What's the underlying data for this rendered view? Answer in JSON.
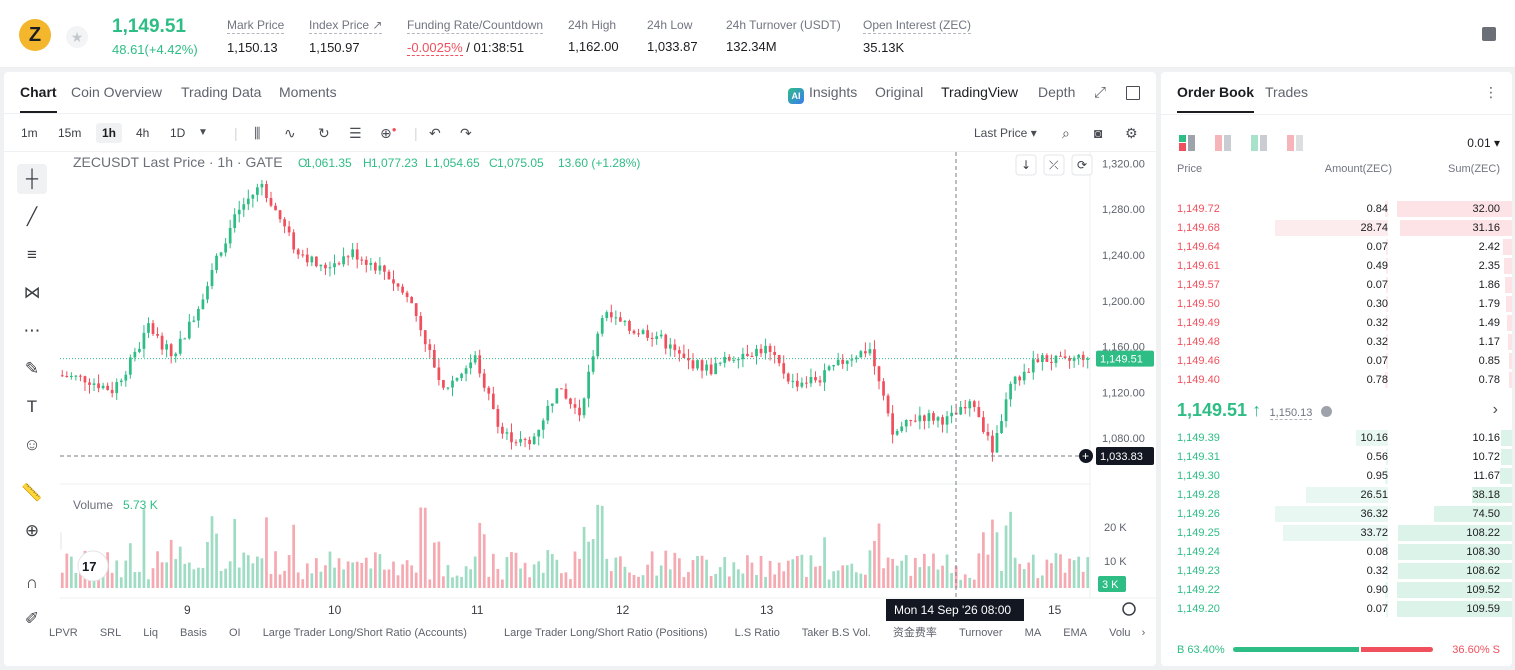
{
  "header": {
    "coin_symbol": "Z",
    "last_price": "1,149.51",
    "change": "48.61(+4.42%)",
    "stats": [
      {
        "label": "Mark Price",
        "value": "1,150.13"
      },
      {
        "label": "Index Price ↗",
        "value": "1,150.97"
      },
      {
        "label": "Funding Rate/Countdown",
        "value_neg": "-0.0025%",
        "value": " / 01:38:51"
      },
      {
        "label": "24h High",
        "value": "1,162.00"
      },
      {
        "label": "24h Low",
        "value": "1,033.87"
      },
      {
        "label": "24h Turnover (USDT)",
        "value": "132.34M"
      },
      {
        "label": "Open Interest (ZEC)",
        "value": "35.13K"
      }
    ]
  },
  "chart_tabs": [
    "Chart",
    "Coin Overview",
    "Trading Data",
    "Moments"
  ],
  "view_tabs": {
    "insights": "Insights",
    "original": "Original",
    "tradingview": "TradingView",
    "depth": "Depth",
    "ai_badge": "AI"
  },
  "timeframes": [
    "1m",
    "15m",
    "1h",
    "4h",
    "1D"
  ],
  "price_type": "Last Price ▾",
  "legend": {
    "symbol": "ZECUSDT Last Price · 1h · GATE",
    "o_label": "O",
    "o": "1,061.35",
    "h_label": "H",
    "h": "1,077.23",
    "l_label": "L",
    "l": "1,054.65",
    "c_label": "C",
    "c": "1,075.05",
    "chg": "13.60 (+1.28%)"
  },
  "volume_label": "Volume",
  "volume_value": "5.73 K",
  "crosshair_date": "Mon 14 Sep '26   08:00",
  "crosshair_price": "1,033.83",
  "current_price_tag": "1,149.51",
  "bottom_tabs": [
    "LPVR",
    "SRL",
    "Liq",
    "Basis",
    "OI",
    "Large Trader Long/Short Ratio (Accounts)",
    "Large Trader Long/Short Ratio (Positions)",
    "L.S Ratio",
    "Taker B.S Vol.",
    "资金费率",
    "Turnover",
    "MA",
    "EMA",
    "Volu"
  ],
  "chart_data": {
    "type": "candlestick",
    "y_ticks": [
      "1,320.00",
      "1,280.00",
      "1,240.00",
      "1,200.00",
      "1,160.00",
      "1,120.00",
      "1,080.00"
    ],
    "ylim": [
      1040,
      1330
    ],
    "x_ticks": [
      "9",
      "10",
      "11",
      "12",
      "13",
      "15"
    ],
    "volume_ticks": [
      "20 K",
      "10 K",
      "3 K"
    ],
    "anchors": [
      [
        0,
        1135
      ],
      [
        6,
        1132
      ],
      [
        12,
        1122
      ],
      [
        17,
        1152
      ],
      [
        20,
        1178
      ],
      [
        25,
        1152
      ],
      [
        30,
        1185
      ],
      [
        35,
        1238
      ],
      [
        40,
        1280
      ],
      [
        45,
        1302
      ],
      [
        52,
        1248
      ],
      [
        58,
        1228
      ],
      [
        65,
        1242
      ],
      [
        72,
        1226
      ],
      [
        78,
        1198
      ],
      [
        85,
        1122
      ],
      [
        92,
        1150
      ],
      [
        98,
        1084
      ],
      [
        104,
        1074
      ],
      [
        110,
        1122
      ],
      [
        115,
        1102
      ],
      [
        120,
        1190
      ],
      [
        126,
        1175
      ],
      [
        132,
        1170
      ],
      [
        138,
        1148
      ],
      [
        144,
        1140
      ],
      [
        150,
        1154
      ],
      [
        156,
        1158
      ],
      [
        162,
        1128
      ],
      [
        168,
        1132
      ],
      [
        174,
        1150
      ],
      [
        179,
        1158
      ],
      [
        184,
        1083
      ],
      [
        190,
        1100
      ],
      [
        196,
        1096
      ],
      [
        202,
        1110
      ],
      [
        206,
        1070
      ],
      [
        210,
        1125
      ],
      [
        216,
        1150
      ],
      [
        222,
        1146
      ],
      [
        226,
        1152
      ]
    ],
    "candle_count": 227,
    "last_close": 1149.51
  },
  "orderbook": {
    "tabs": [
      "Order Book",
      "Trades"
    ],
    "precision": "0.01 ▾",
    "headers": {
      "price": "Price",
      "amount": "Amount(ZEC)",
      "sum": "Sum(ZEC)"
    },
    "asks": [
      {
        "price": "1,149.72",
        "amount": "0.84",
        "sum": "32.00"
      },
      {
        "price": "1,149.68",
        "amount": "28.74",
        "sum": "31.16"
      },
      {
        "price": "1,149.64",
        "amount": "0.07",
        "sum": "2.42"
      },
      {
        "price": "1,149.61",
        "amount": "0.49",
        "sum": "2.35"
      },
      {
        "price": "1,149.57",
        "amount": "0.07",
        "sum": "1.86"
      },
      {
        "price": "1,149.50",
        "amount": "0.30",
        "sum": "1.79"
      },
      {
        "price": "1,149.49",
        "amount": "0.32",
        "sum": "1.49"
      },
      {
        "price": "1,149.48",
        "amount": "0.32",
        "sum": "1.17"
      },
      {
        "price": "1,149.46",
        "amount": "0.07",
        "sum": "0.85"
      },
      {
        "price": "1,149.40",
        "amount": "0.78",
        "sum": "0.78"
      }
    ],
    "mid_price": "1,149.51 ↑",
    "mark_price": "1,150.13",
    "bids": [
      {
        "price": "1,149.39",
        "amount": "10.16",
        "sum": "10.16"
      },
      {
        "price": "1,149.31",
        "amount": "0.56",
        "sum": "10.72"
      },
      {
        "price": "1,149.30",
        "amount": "0.95",
        "sum": "11.67"
      },
      {
        "price": "1,149.28",
        "amount": "26.51",
        "sum": "38.18"
      },
      {
        "price": "1,149.26",
        "amount": "36.32",
        "sum": "74.50"
      },
      {
        "price": "1,149.25",
        "amount": "33.72",
        "sum": "108.22"
      },
      {
        "price": "1,149.24",
        "amount": "0.08",
        "sum": "108.30"
      },
      {
        "price": "1,149.23",
        "amount": "0.32",
        "sum": "108.62"
      },
      {
        "price": "1,149.22",
        "amount": "0.90",
        "sum": "109.52"
      },
      {
        "price": "1,149.20",
        "amount": "0.07",
        "sum": "109.59"
      }
    ],
    "buy_ratio": "B 63.40%",
    "sell_ratio": "36.60% S",
    "buy_fraction": 0.634
  },
  "colors": {
    "up": "#2ebd85",
    "down": "#f0505d",
    "up_bg": "#e8f7f1",
    "down_bg": "#fdecee"
  }
}
